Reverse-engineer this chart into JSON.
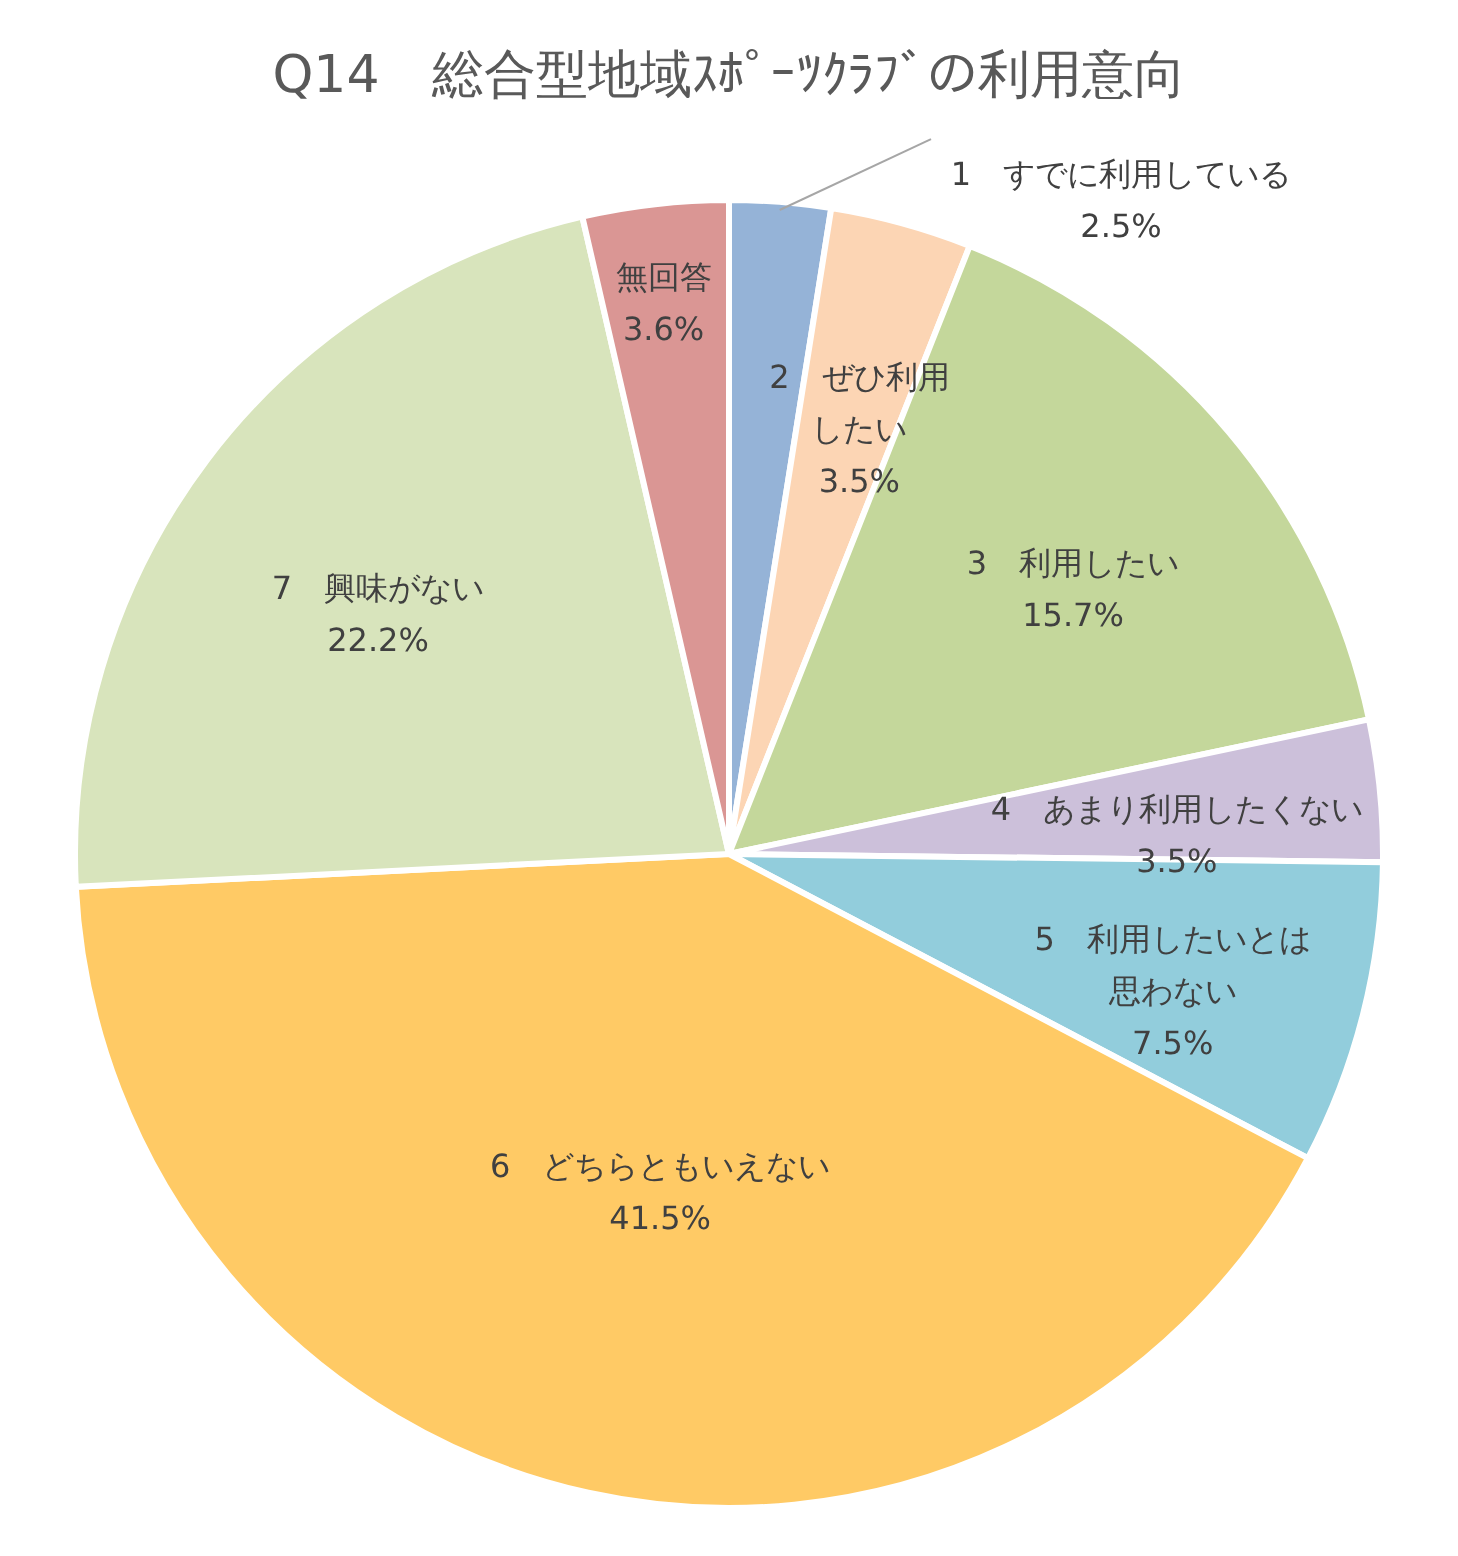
{
  "chart_data": {
    "type": "pie",
    "title": "Q14　総合型地域ｽﾎﾟｰﾂｸﾗﾌﾞの利用意向",
    "categories": [
      "1　すでに利用している",
      "2　ぜひ利用したい",
      "3　利用したい",
      "4　あまり利用したくない",
      "5　利用したいとは思わない",
      "6　どちらともいえない",
      "7　興味がない",
      "無回答"
    ],
    "values": [
      2.5,
      3.5,
      15.7,
      3.5,
      7.5,
      41.5,
      22.2,
      3.6
    ],
    "colors": [
      "#95b3d7",
      "#fcd5b4",
      "#c4d79b",
      "#ccc0da",
      "#92cddc",
      "#ffca65",
      "#d8e4bc",
      "#da9694"
    ],
    "value_labels": [
      "2.5%",
      "3.5%",
      "15.7%",
      "3.5%",
      "7.5%",
      "41.5%",
      "22.2%",
      "3.6%"
    ],
    "legend": false
  }
}
